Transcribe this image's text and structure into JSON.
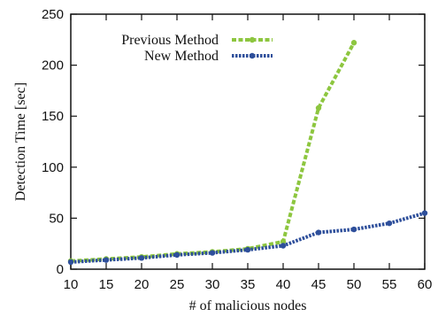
{
  "chart_data": {
    "type": "line",
    "xlabel": "# of malicious nodes",
    "ylabel": "Detection Time [sec]",
    "xlim": [
      10,
      60
    ],
    "ylim": [
      0,
      250
    ],
    "xticks": [
      "10",
      "15",
      "20",
      "25",
      "30",
      "35",
      "40",
      "45",
      "50",
      "55",
      "60"
    ],
    "yticks": [
      "0",
      "50",
      "100",
      "150",
      "200",
      "250"
    ],
    "grid": false,
    "legend_position": "top-center",
    "series": [
      {
        "name": "Previous Method",
        "color": "#8dc63f",
        "line_style": "dashed",
        "marker": "circle",
        "x": [
          10,
          15,
          20,
          25,
          30,
          35,
          40,
          45,
          50
        ],
        "y": [
          8,
          10,
          12,
          15,
          17,
          20,
          27,
          158,
          222
        ]
      },
      {
        "name": "New Method",
        "color": "#2e4f9b",
        "line_style": "dotted",
        "marker": "circle",
        "x": [
          10,
          15,
          20,
          25,
          30,
          35,
          40,
          45,
          50,
          55,
          60
        ],
        "y": [
          7,
          9,
          11,
          14,
          16,
          19,
          23,
          36,
          39,
          45,
          55
        ]
      }
    ]
  }
}
